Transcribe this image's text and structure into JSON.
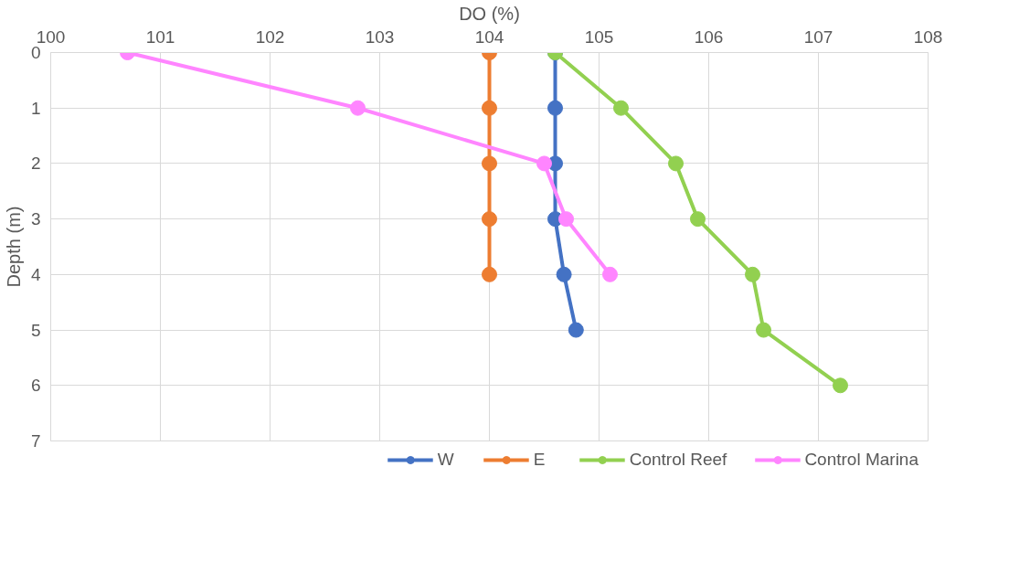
{
  "chart_data": {
    "type": "line",
    "xlabel": "DO (%)",
    "ylabel": "Depth (m)",
    "xlim": [
      100,
      108
    ],
    "xticks": [
      100,
      101,
      102,
      103,
      104,
      105,
      106,
      107,
      108
    ],
    "ylim": [
      7,
      0
    ],
    "yticks": [
      0,
      1,
      2,
      3,
      4,
      5,
      6,
      7
    ],
    "grid": true,
    "legend": "bottom",
    "marker": "circle",
    "line_style": "solid",
    "series": [
      {
        "name": "W",
        "color": "#4472c4",
        "x": [
          104.6,
          104.6,
          104.6,
          104.6,
          104.68,
          104.79
        ],
        "values": [
          0,
          1,
          2,
          3,
          4,
          5
        ]
      },
      {
        "name": "E",
        "color": "#ed7d31",
        "x": [
          104,
          104,
          104,
          104,
          104
        ],
        "values": [
          0,
          1,
          2,
          3,
          4
        ]
      },
      {
        "name": "Control Reef",
        "color": "#92d050",
        "x": [
          104.6,
          105.2,
          105.7,
          105.9,
          106.4,
          106.5,
          107.2
        ],
        "values": [
          0,
          1,
          2,
          3,
          4,
          5,
          6
        ]
      },
      {
        "name": "Control Marina",
        "color": "#ff85ff",
        "x": [
          100.7,
          102.8,
          104.5,
          104.7,
          105.1
        ],
        "values": [
          0,
          1,
          2,
          3,
          4
        ]
      }
    ]
  }
}
